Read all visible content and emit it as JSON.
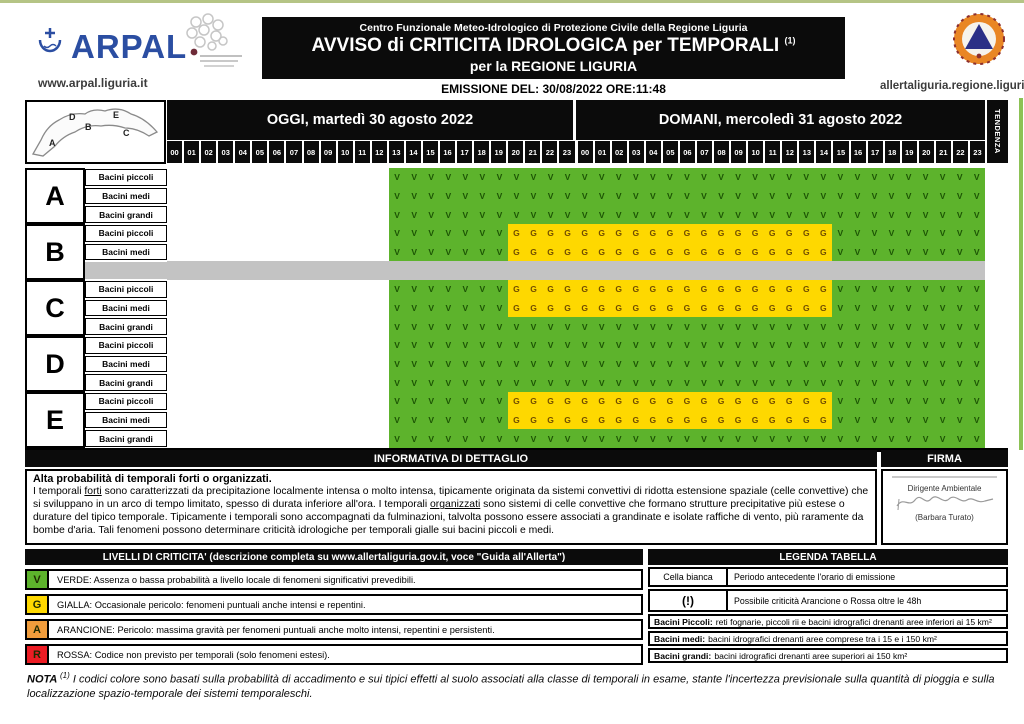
{
  "header": {
    "arpal_name": "ARPAL",
    "arpal_url": "www.arpal.liguria.it",
    "title_small": "Centro Funzionale Meteo-Idrologico di Protezione Civile della Regione Liguria",
    "title_main": "AVVISO di CRITICITA IDROLOGICA per TEMPORALI",
    "title_note_ref": "(1)",
    "title_sub": "per la REGIONE LIGURIA",
    "emission": "EMISSIONE DEL: 30/08/2022 ORE:11:48",
    "allerta_url": "allertaliguria.regione.liguria.it",
    "icons": [
      "arpal-emblem-icon",
      "partner-logo-icon",
      "civil-protection-logo-icon",
      "liguria-map-icon"
    ]
  },
  "grid": {
    "day_today": "OGGI, martedì 30 agosto 2022",
    "day_tomorrow": "DOMANI, mercoledì 31 agosto 2022",
    "tendenza_label": "TENDENZA",
    "hours": [
      "00",
      "01",
      "02",
      "03",
      "04",
      "05",
      "06",
      "07",
      "08",
      "09",
      "10",
      "11",
      "12",
      "13",
      "14",
      "15",
      "16",
      "17",
      "18",
      "19",
      "20",
      "21",
      "22",
      "23"
    ],
    "map_letters": [
      "A",
      "B",
      "C",
      "D",
      "E"
    ],
    "patterns": {
      "allV": [
        [
          "V",
          13,
          "blank"
        ],
        [
          "V",
          35,
          "V"
        ]
      ],
      "vgv": [
        [
          "V",
          13,
          "blank"
        ],
        [
          "V",
          7,
          "V"
        ],
        [
          "G",
          19,
          "G"
        ],
        [
          "V",
          9,
          "V"
        ]
      ],
      "gray": [
        [
          "",
          48,
          "gray"
        ]
      ]
    },
    "zones": [
      {
        "letter": "A",
        "rows": [
          {
            "label": "Bacini piccoli",
            "pattern": "allV"
          },
          {
            "label": "Bacini medi",
            "pattern": "allV"
          },
          {
            "label": "Bacini grandi",
            "pattern": "allV"
          }
        ]
      },
      {
        "letter": "B",
        "rows": [
          {
            "label": "Bacini piccoli",
            "pattern": "vgv"
          },
          {
            "label": "Bacini medi",
            "pattern": "vgv"
          },
          {
            "label": "",
            "pattern": "gray"
          }
        ]
      },
      {
        "letter": "C",
        "rows": [
          {
            "label": "Bacini piccoli",
            "pattern": "vgv"
          },
          {
            "label": "Bacini medi",
            "pattern": "vgv"
          },
          {
            "label": "Bacini grandi",
            "pattern": "allV"
          }
        ]
      },
      {
        "letter": "D",
        "rows": [
          {
            "label": "Bacini piccoli",
            "pattern": "allV"
          },
          {
            "label": "Bacini medi",
            "pattern": "allV"
          },
          {
            "label": "Bacini grandi",
            "pattern": "allV"
          }
        ]
      },
      {
        "letter": "E",
        "rows": [
          {
            "label": "Bacini piccoli",
            "pattern": "vgv"
          },
          {
            "label": "Bacini medi",
            "pattern": "vgv"
          },
          {
            "label": "Bacini grandi",
            "pattern": "allV"
          }
        ]
      }
    ],
    "colors": {
      "green": "#5db32c",
      "yellow": "#fed800",
      "gray": "#c3c3c3",
      "v_text": "#1c5404",
      "g_text": "#714d00"
    }
  },
  "informativa": {
    "header": "INFORMATIVA DI DETTAGLIO",
    "bold_line": "Alta probabilità di temporali forti o organizzati.",
    "body_pre": "I temporali ",
    "body_u1": "forti",
    "body_mid1": " sono caratterizzati da precipitazione localmente intensa o molto intensa, tipicamente originata da sistemi convettivi di ridotta estensione spaziale (celle convettive) che si sviluppano in un arco di tempo limitato, spesso di durata inferiore all'ora. I temporali ",
    "body_u2": "organizzati",
    "body_end": " sono sistemi di celle convettive che formano strutture precipitative più estese o durature del tipico temporale. Tipicamente i temporali sono accompagnati da fulminazioni, talvolta possono essere associati a grandinate e isolate raffiche di vento, più raramente da bombe d'aria. Tali fenomeni possono determinare criticità idrologiche per temporali gialle sui bacini piccoli e medi."
  },
  "firma": {
    "header": "FIRMA",
    "role": "Dirigente Ambientale",
    "name": "(Barbara Turato)"
  },
  "livelli": {
    "header": "LIVELLI DI CRITICITA' (descrizione completa su www.allertaliguria.gov.it, voce \"Guida all'Allerta\")",
    "rows": [
      {
        "code": "V",
        "color": "#5db32c",
        "text": "VERDE: Assenza o bassa probabilità a livello locale di fenomeni significativi prevedibili."
      },
      {
        "code": "G",
        "color": "#fed800",
        "text": "GIALLA: Occasionale pericolo: fenomeni puntuali anche intensi e repentini."
      },
      {
        "code": "A",
        "color": "#f09c3c",
        "text": "ARANCIONE: Pericolo: massima gravità per fenomeni puntuali anche molto intensi, repentini e persistenti."
      },
      {
        "code": "R",
        "color": "#ec1c24",
        "text": "ROSSA: Codice non previsto per temporali (solo fenomeni estesi)."
      }
    ]
  },
  "legenda": {
    "header": "LEGENDA TABELLA",
    "rows2col": [
      {
        "key": "Cella bianca",
        "text": "Periodo antecedente l'orario di emissione"
      },
      {
        "key": "(!)",
        "text": "Possibile criticità Arancione o Rossa oltre le 48h"
      }
    ],
    "rows1col": [
      {
        "key": "Bacini Piccoli:",
        "text": "reti fognarie, piccoli rii e bacini idrografici drenanti aree inferiori ai 15 km²"
      },
      {
        "key": "Bacini medi:",
        "text": "bacini idrografici drenanti aree comprese tra i 15 e i 150 km²"
      },
      {
        "key": "Bacini grandi:",
        "text": "bacini idrografici drenanti aree superiori ai 150 km²"
      }
    ]
  },
  "nota": {
    "label": "NOTA ",
    "sup": "(1)",
    "text": " I codici colore sono basati sulla probabilità di accadimento e sui tipici effetti al suolo associati alla classe di temporali in esame, stante l'incertezza previsionale sulla quantità di pioggia e sulla localizzazione spazio-temporale dei sistemi temporaleschi."
  }
}
